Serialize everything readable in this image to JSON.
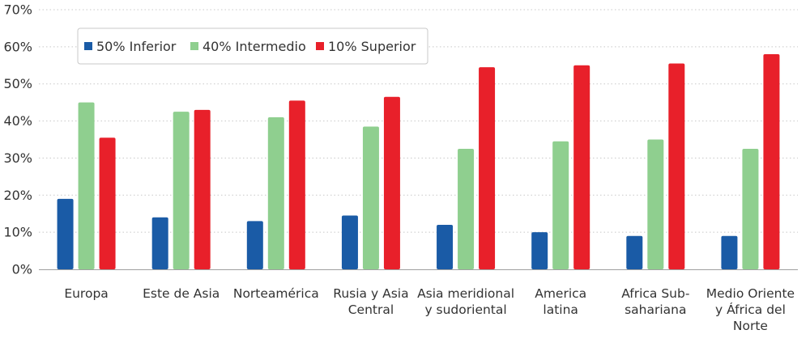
{
  "chart_data": {
    "type": "bar",
    "categories": [
      [
        "Europa"
      ],
      [
        "Este de Asia"
      ],
      [
        "Norteamérica"
      ],
      [
        "Rusia y Asia",
        "Central"
      ],
      [
        "Asia meridional",
        "y sudoriental"
      ],
      [
        "America",
        "latina"
      ],
      [
        "Africa Sub-",
        "sahariana"
      ],
      [
        "Medio Oriente",
        "y África del",
        "Norte"
      ]
    ],
    "series": [
      {
        "name": "50% Inferior",
        "color": "#1a5ba6",
        "values": [
          19,
          14,
          13,
          14.5,
          12,
          10,
          9,
          9
        ]
      },
      {
        "name": "40% Intermedio",
        "color": "#8fcf8f",
        "values": [
          45,
          42.5,
          41,
          38.5,
          32.5,
          34.5,
          35,
          32.5
        ]
      },
      {
        "name": "10% Superior",
        "color": "#e8202a",
        "values": [
          35.5,
          43,
          45.5,
          46.5,
          54.5,
          55,
          55.5,
          58
        ]
      }
    ],
    "yticks": [
      "0%",
      "10%",
      "20%",
      "30%",
      "40%",
      "50%",
      "60%",
      "70%"
    ],
    "ylim": [
      0,
      70
    ],
    "grid": true,
    "legend_position": "top-left"
  }
}
